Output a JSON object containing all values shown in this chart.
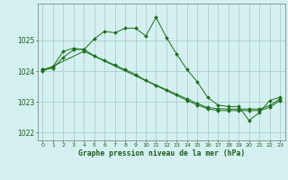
{
  "series1": {
    "x": [
      0,
      1,
      2,
      3,
      4,
      5,
      6,
      7,
      8,
      9,
      10,
      11,
      12,
      13,
      14,
      15,
      16,
      17,
      18,
      19,
      20,
      21,
      22,
      23
    ],
    "y": [
      1024.05,
      1024.15,
      1024.65,
      1024.75,
      1024.7,
      1025.05,
      1025.3,
      1025.25,
      1025.4,
      1025.4,
      1025.15,
      1025.75,
      1025.1,
      1024.55,
      1024.05,
      1023.65,
      1023.15,
      1022.9,
      1022.85,
      1022.85,
      1022.4,
      1022.65,
      1023.05,
      1023.15
    ]
  },
  "series2": {
    "x": [
      0,
      1,
      2,
      3,
      4,
      5,
      6,
      7,
      8,
      9,
      10,
      11,
      12,
      13,
      14,
      15,
      16,
      17,
      18,
      19,
      20,
      21,
      22,
      23
    ],
    "y": [
      1024.05,
      1024.1,
      1024.45,
      1024.7,
      1024.72,
      1024.5,
      1024.35,
      1024.2,
      1024.05,
      1023.9,
      1023.7,
      1023.55,
      1023.4,
      1023.25,
      1023.1,
      1022.95,
      1022.82,
      1022.78,
      1022.77,
      1022.77,
      1022.77,
      1022.77,
      1022.88,
      1023.1
    ]
  },
  "series3": {
    "x": [
      0,
      4,
      14,
      15,
      16,
      17,
      18,
      19,
      20,
      21,
      22,
      23
    ],
    "y": [
      1024.0,
      1024.65,
      1023.05,
      1022.9,
      1022.78,
      1022.72,
      1022.72,
      1022.72,
      1022.72,
      1022.72,
      1022.82,
      1023.05
    ]
  },
  "line_color": "#1a6e1a",
  "bg_color": "#d5f0f0",
  "grid_color": "#a0c8c8",
  "text_color": "#1a5c1a",
  "xlabel": "Graphe pression niveau de la mer (hPa)",
  "ylim": [
    1021.75,
    1026.2
  ],
  "xlim": [
    -0.5,
    23.5
  ],
  "yticks": [
    1022,
    1023,
    1024,
    1025
  ],
  "xticks": [
    0,
    1,
    2,
    3,
    4,
    5,
    6,
    7,
    8,
    9,
    10,
    11,
    12,
    13,
    14,
    15,
    16,
    17,
    18,
    19,
    20,
    21,
    22,
    23
  ],
  "figwidth": 3.2,
  "figheight": 2.0,
  "dpi": 100
}
